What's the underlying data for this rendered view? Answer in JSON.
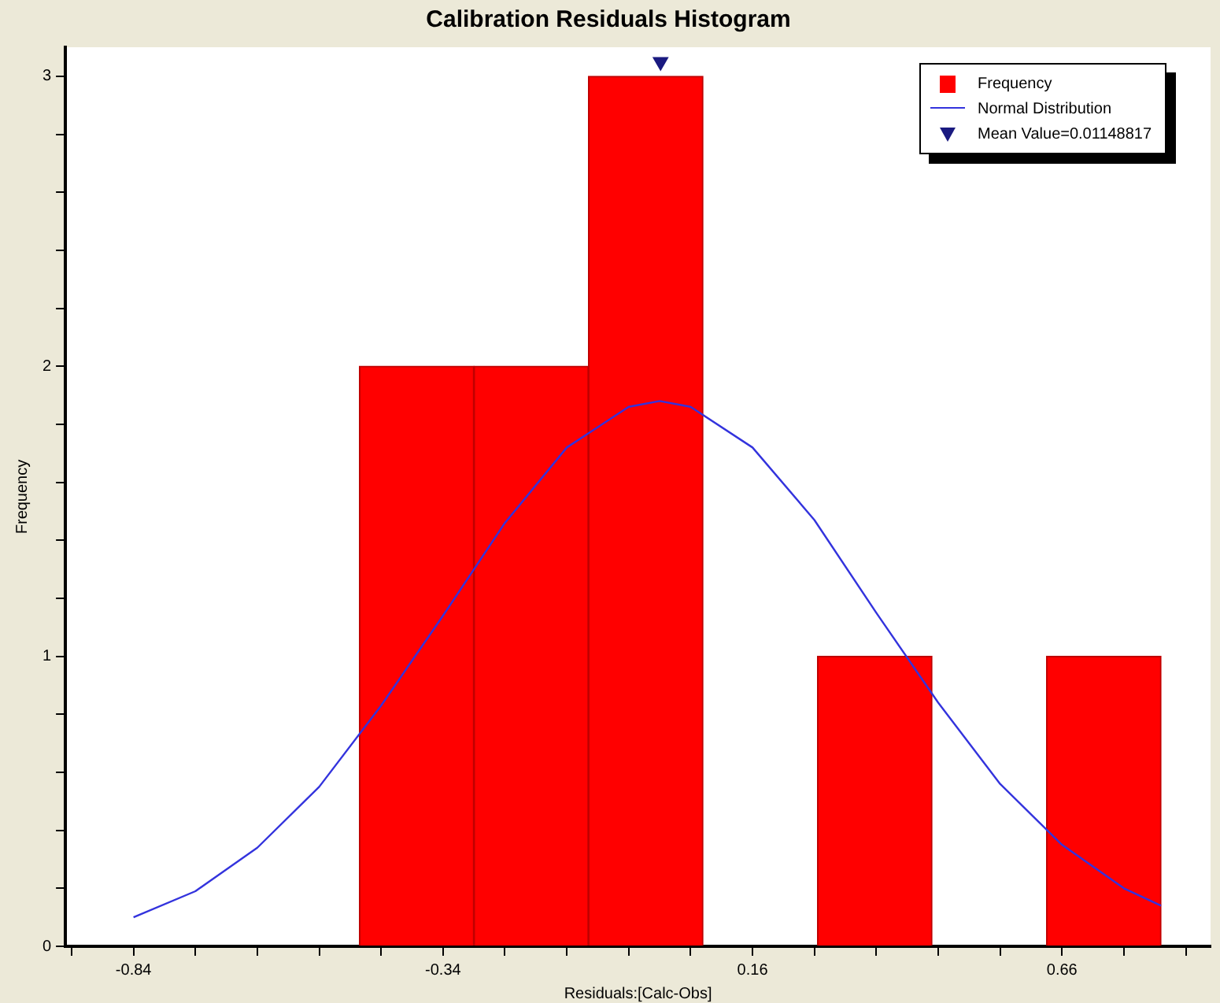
{
  "chart_data": {
    "type": "histogram",
    "title": "Calibration Residuals Histogram",
    "xlabel": "Residuals:[Calc-Obs]",
    "ylabel": "Frequency",
    "bins": [
      -0.475,
      -0.29,
      -0.105,
      0.08,
      0.265,
      0.45,
      0.635,
      0.82
    ],
    "series": [
      {
        "name": "Frequency",
        "type": "histogram",
        "color": "#ff0000",
        "values": [
          2,
          2,
          3,
          0,
          1,
          0,
          1
        ]
      },
      {
        "name": "Normal Distribution",
        "type": "line",
        "color": "#3333dd",
        "marker": "none",
        "x": [
          -0.84,
          -0.74,
          -0.64,
          -0.54,
          -0.44,
          -0.34,
          -0.24,
          -0.14,
          -0.04,
          0.01,
          0.06,
          0.16,
          0.26,
          0.36,
          0.46,
          0.56,
          0.66,
          0.76,
          0.82
        ],
        "values": [
          0.1,
          0.19,
          0.34,
          0.55,
          0.83,
          1.14,
          1.46,
          1.72,
          1.86,
          1.88,
          1.86,
          1.72,
          1.47,
          1.15,
          0.84,
          0.56,
          0.35,
          0.2,
          0.14
        ]
      },
      {
        "name": "Mean Value=0.01148817",
        "type": "scatter",
        "color": "#1a1a80",
        "marker": "triangle",
        "x": [
          0.01148817
        ],
        "values": [
          3.05
        ]
      }
    ],
    "xlim": [
      -0.95,
      0.9
    ],
    "xticks": [
      {
        "value": -0.94,
        "label": null
      },
      -0.84,
      {
        "value": -0.74,
        "label": null
      },
      {
        "value": -0.64,
        "label": null
      },
      {
        "value": -0.54,
        "label": null
      },
      {
        "value": -0.44,
        "label": null
      },
      -0.34,
      {
        "value": -0.24,
        "label": null
      },
      {
        "value": -0.14,
        "label": null
      },
      {
        "value": -0.04,
        "label": null
      },
      {
        "value": 0.06,
        "label": null
      },
      0.16,
      {
        "value": 0.26,
        "label": null
      },
      {
        "value": 0.36,
        "label": null
      },
      {
        "value": 0.46,
        "label": null
      },
      {
        "value": 0.56,
        "label": null
      },
      0.66,
      {
        "value": 0.76,
        "label": null
      },
      {
        "value": 0.86,
        "label": null
      }
    ],
    "ylim": [
      0,
      3.1
    ],
    "yticks": [
      0,
      {
        "value": 0.2,
        "label": null
      },
      {
        "value": 0.4,
        "label": null
      },
      {
        "value": 0.6,
        "label": null
      },
      {
        "value": 0.8,
        "label": null
      },
      1,
      {
        "value": 1.2,
        "label": null
      },
      {
        "value": 1.4,
        "label": null
      },
      {
        "value": 1.6,
        "label": null
      },
      {
        "value": 1.8,
        "label": null
      },
      2,
      {
        "value": 2.2,
        "label": null
      },
      {
        "value": 2.4,
        "label": null
      },
      {
        "value": 2.6,
        "label": null
      },
      {
        "value": 2.8,
        "label": null
      },
      3
    ],
    "grid": false,
    "legend": "top right"
  }
}
